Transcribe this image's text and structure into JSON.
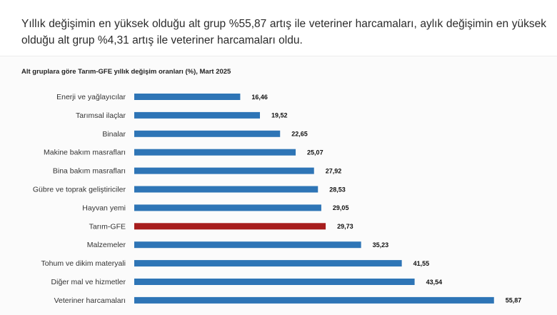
{
  "intro_text": "Yıllık değişimin en yüksek olduğu alt grup %55,87 artış ile veteriner harcamaları, aylık değişimin en yüksek olduğu alt grup %4,31 artış ile veteriner harcamaları oldu.",
  "chart_data": {
    "type": "bar",
    "orientation": "horizontal",
    "title": "Alt gruplara göre Tarım-GFE yıllık değişim oranları (%), Mart 2025",
    "categories": [
      "Enerji  ve yağlayıcılar",
      "Tarımsal ilaçlar",
      "Binalar",
      "Makine bakım masrafları",
      "Bina bakım masrafları",
      "Gübre ve toprak geliştiriciler",
      "Hayvan yemi",
      "Tarım-GFE",
      "Malzemeler",
      "Tohum ve dikim materyali",
      "Diğer mal ve hizmetler",
      "Veteriner harcamaları"
    ],
    "values": [
      16.46,
      19.52,
      22.65,
      25.07,
      27.92,
      28.53,
      29.05,
      29.73,
      35.23,
      41.55,
      43.54,
      55.87
    ],
    "value_labels": [
      "16,46",
      "19,52",
      "22,65",
      "25,07",
      "27,92",
      "28,53",
      "29,05",
      "29,73",
      "35,23",
      "41,55",
      "43,54",
      "55,87"
    ],
    "highlight_category": "Tarım-GFE",
    "xlim": [
      0,
      60
    ],
    "grid": false,
    "legend": "none",
    "colors": {
      "bar": "#2e75b6",
      "highlight": "#a71d1d"
    }
  }
}
